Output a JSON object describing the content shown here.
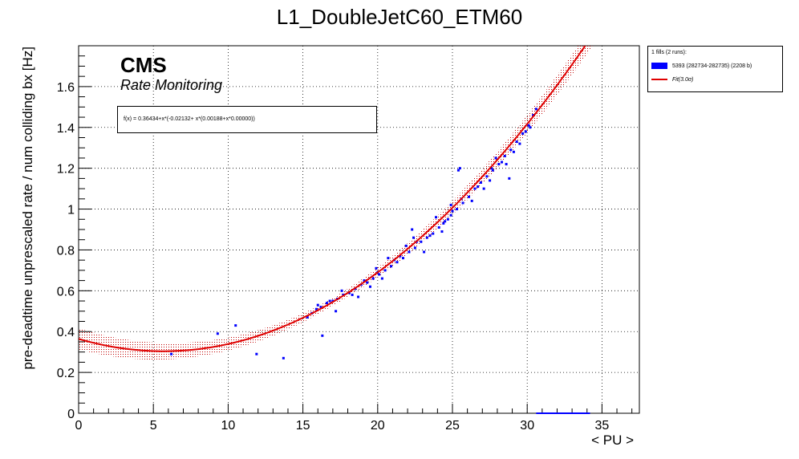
{
  "chart_data": {
    "type": "scatter",
    "title": "L1_DoubleJetC60_ETM60",
    "xlabel": "< PU >",
    "ylabel": "pre-deadtime unprescaled rate / num colliding bx [Hz]",
    "xlim": [
      0,
      37.5
    ],
    "ylim": [
      0,
      1.8
    ],
    "x_ticks": [
      "0",
      "5",
      "10",
      "15",
      "20",
      "25",
      "30",
      "35"
    ],
    "y_ticks": [
      "0",
      "0.2",
      "0.4",
      "0.6",
      "0.8",
      "1",
      "1.2",
      "1.4",
      "1.6"
    ],
    "grid": true,
    "legend_position": "top-right-outside",
    "fit": {
      "formula": "f(x) = 0.36434+x*(-0.02132+ x*(0.00188+x*0.00000))",
      "coefficients": [
        0.36434,
        -0.02132,
        0.00188,
        0.0
      ],
      "band_sigma": 3.0,
      "x_range": [
        0,
        37.5
      ]
    },
    "series": [
      {
        "name": "5393 (282734-282735) (2208 b)",
        "color": "#0000ff",
        "x": [
          6.2,
          9.3,
          10.5,
          11.9,
          13.7,
          16.3,
          15.3,
          15.6,
          15.9,
          16.2,
          16.6,
          17.0,
          17.3,
          17.7,
          18.1,
          18.5,
          18.9,
          19.3,
          19.7,
          20.1,
          20.5,
          20.9,
          21.3,
          21.7,
          22.1,
          22.5,
          22.9,
          23.3,
          23.7,
          24.1,
          24.5,
          24.9,
          25.3,
          25.7,
          26.1,
          26.5,
          26.9,
          27.3,
          27.7,
          28.1,
          28.5,
          28.9,
          29.3,
          29.7,
          30.1,
          30.4,
          30.6,
          16.0,
          17.6,
          18.3,
          19.1,
          19.9,
          20.3,
          20.7,
          21.5,
          22.3,
          22.6,
          22.4,
          23.1,
          23.9,
          24.3,
          24.7,
          25.0,
          25.4,
          25.5,
          26.3,
          27.1,
          27.5,
          27.9,
          28.3,
          28.6,
          29.1,
          29.5,
          29.9,
          30.2,
          17.2,
          18.7,
          19.5,
          21.1,
          21.9,
          23.5,
          24.9,
          26.7,
          28.8,
          25.6,
          16.8,
          20.0,
          24.4,
          27.6
        ],
        "y": [
          0.29,
          0.39,
          0.43,
          0.29,
          0.27,
          0.38,
          0.47,
          0.49,
          0.51,
          0.52,
          0.54,
          0.55,
          0.56,
          0.58,
          0.59,
          0.61,
          0.63,
          0.64,
          0.66,
          0.68,
          0.7,
          0.72,
          0.74,
          0.76,
          0.79,
          0.81,
          0.84,
          0.86,
          0.88,
          0.91,
          0.94,
          0.97,
          1.0,
          1.03,
          1.06,
          1.1,
          1.13,
          1.16,
          1.19,
          1.22,
          1.26,
          1.29,
          1.33,
          1.37,
          1.41,
          1.46,
          1.49,
          0.53,
          0.6,
          0.58,
          0.65,
          0.71,
          0.66,
          0.76,
          0.77,
          0.9,
          0.84,
          0.86,
          0.79,
          0.96,
          0.89,
          0.95,
          0.99,
          1.19,
          1.2,
          1.04,
          1.1,
          1.14,
          1.25,
          1.23,
          1.22,
          1.28,
          1.32,
          1.38,
          1.4,
          0.5,
          0.57,
          0.62,
          0.75,
          0.82,
          0.87,
          1.02,
          1.11,
          1.15,
          1.05,
          0.55,
          0.69,
          0.93,
          1.2
        ]
      },
      {
        "name": "Fit(3.0σ)",
        "color": "#e00000"
      }
    ],
    "extra_segment": {
      "x": [
        30.6,
        34.2
      ],
      "y": [
        0.0,
        0.0
      ],
      "color": "#0000ff"
    }
  },
  "annotations": {
    "cms_label": "CMS",
    "rate_label": "Rate Monitoring"
  },
  "legend": {
    "header": "1 fills (2 runs):",
    "entries": [
      "5393 (282734-282735) (2208 b)",
      "Fit(3.0σ)"
    ]
  }
}
